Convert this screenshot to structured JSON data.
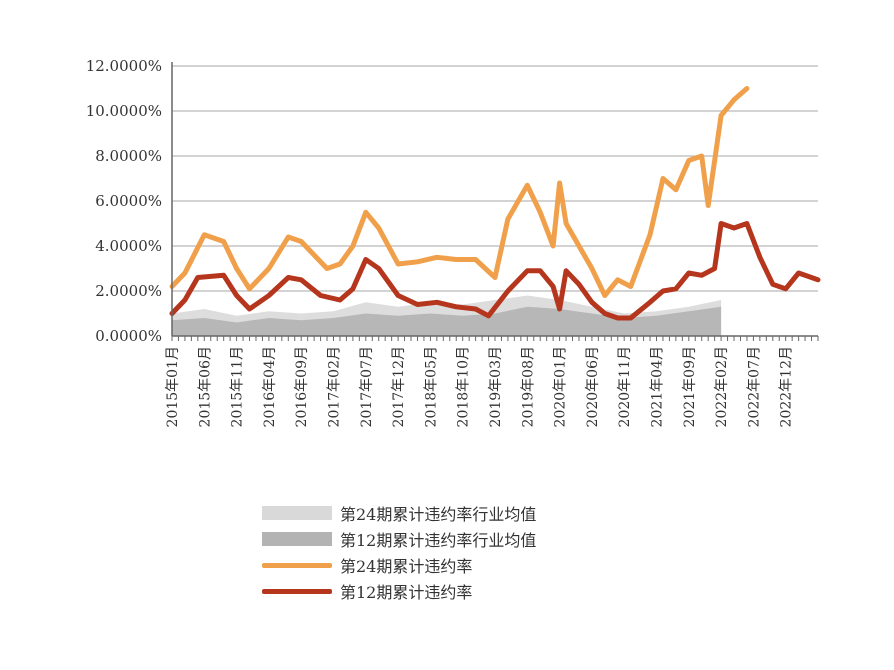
{
  "chart_data": {
    "type": "area",
    "x_tick_labels": [
      "2015年01月",
      "2015年06月",
      "2015年11月",
      "2016年04月",
      "2016年09月",
      "2017年02月",
      "2017年07月",
      "2017年12月",
      "2018年05月",
      "2018年10月",
      "2019年03月",
      "2019年08月",
      "2020年01月",
      "2020年06月",
      "2020年11月",
      "2021年04月",
      "2021年09月",
      "2022年02月",
      "2022年07月",
      "2022年12月"
    ],
    "y_tick_labels": [
      "0.0000%",
      "2.0000%",
      "4.0000%",
      "6.0000%",
      "8.0000%",
      "10.0000%",
      "12.0000%"
    ],
    "ylim": [
      0,
      12
    ],
    "x_start": "2015-01",
    "x_end": "2023-05",
    "grid": "horizontal",
    "legend_position": "bottom",
    "series": [
      {
        "name": "第24期累计违约率行业均值",
        "kind": "area",
        "color": "#d9d9d9",
        "values": [
          [
            "2015-01",
            1.0
          ],
          [
            "2015-06",
            1.2
          ],
          [
            "2015-11",
            0.9
          ],
          [
            "2016-04",
            1.1
          ],
          [
            "2016-09",
            1.0
          ],
          [
            "2017-02",
            1.1
          ],
          [
            "2017-07",
            1.5
          ],
          [
            "2017-12",
            1.3
          ],
          [
            "2018-05",
            1.5
          ],
          [
            "2018-10",
            1.4
          ],
          [
            "2019-03",
            1.6
          ],
          [
            "2019-08",
            1.8
          ],
          [
            "2020-01",
            1.6
          ],
          [
            "2020-06",
            1.3
          ],
          [
            "2020-11",
            1.0
          ],
          [
            "2021-04",
            1.1
          ],
          [
            "2021-09",
            1.3
          ],
          [
            "2022-02",
            1.6
          ]
        ]
      },
      {
        "name": "第12期累计违约率行业均值",
        "kind": "area",
        "color": "#b3b3b3",
        "values": [
          [
            "2015-01",
            0.7
          ],
          [
            "2015-06",
            0.8
          ],
          [
            "2015-11",
            0.6
          ],
          [
            "2016-04",
            0.8
          ],
          [
            "2016-09",
            0.7
          ],
          [
            "2017-02",
            0.8
          ],
          [
            "2017-07",
            1.0
          ],
          [
            "2017-12",
            0.9
          ],
          [
            "2018-05",
            1.0
          ],
          [
            "2018-10",
            0.9
          ],
          [
            "2019-03",
            1.0
          ],
          [
            "2019-08",
            1.3
          ],
          [
            "2020-01",
            1.2
          ],
          [
            "2020-06",
            1.0
          ],
          [
            "2020-11",
            0.8
          ],
          [
            "2021-04",
            0.9
          ],
          [
            "2021-09",
            1.1
          ],
          [
            "2022-02",
            1.3
          ]
        ]
      },
      {
        "name": "第24期累计违约率",
        "kind": "line",
        "color": "#f0a04b",
        "values": [
          [
            "2015-01",
            2.2
          ],
          [
            "2015-03",
            2.8
          ],
          [
            "2015-06",
            4.5
          ],
          [
            "2015-09",
            4.2
          ],
          [
            "2015-11",
            3.0
          ],
          [
            "2016-01",
            2.1
          ],
          [
            "2016-04",
            3.0
          ],
          [
            "2016-07",
            4.4
          ],
          [
            "2016-09",
            4.2
          ],
          [
            "2017-01",
            3.0
          ],
          [
            "2017-03",
            3.2
          ],
          [
            "2017-05",
            4.0
          ],
          [
            "2017-07",
            5.5
          ],
          [
            "2017-09",
            4.8
          ],
          [
            "2017-12",
            3.2
          ],
          [
            "2018-03",
            3.3
          ],
          [
            "2018-06",
            3.5
          ],
          [
            "2018-09",
            3.4
          ],
          [
            "2018-12",
            3.4
          ],
          [
            "2019-03",
            2.6
          ],
          [
            "2019-05",
            5.2
          ],
          [
            "2019-08",
            6.7
          ],
          [
            "2019-10",
            5.5
          ],
          [
            "2019-12",
            4.0
          ],
          [
            "2020-01",
            6.8
          ],
          [
            "2020-02",
            5.0
          ],
          [
            "2020-04",
            4.0
          ],
          [
            "2020-06",
            3.0
          ],
          [
            "2020-08",
            1.8
          ],
          [
            "2020-10",
            2.5
          ],
          [
            "2020-12",
            2.2
          ],
          [
            "2021-03",
            4.5
          ],
          [
            "2021-05",
            7.0
          ],
          [
            "2021-07",
            6.5
          ],
          [
            "2021-09",
            7.8
          ],
          [
            "2021-11",
            8.0
          ],
          [
            "2021-12",
            5.8
          ],
          [
            "2022-02",
            9.8
          ],
          [
            "2022-04",
            10.5
          ],
          [
            "2022-06",
            11.0
          ]
        ]
      },
      {
        "name": "第12期累计违约率",
        "kind": "line",
        "color": "#b5351d",
        "values": [
          [
            "2015-01",
            1.0
          ],
          [
            "2015-03",
            1.6
          ],
          [
            "2015-05",
            2.6
          ],
          [
            "2015-09",
            2.7
          ],
          [
            "2015-11",
            1.8
          ],
          [
            "2016-01",
            1.2
          ],
          [
            "2016-04",
            1.8
          ],
          [
            "2016-07",
            2.6
          ],
          [
            "2016-09",
            2.5
          ],
          [
            "2016-12",
            1.8
          ],
          [
            "2017-03",
            1.6
          ],
          [
            "2017-05",
            2.1
          ],
          [
            "2017-07",
            3.4
          ],
          [
            "2017-09",
            3.0
          ],
          [
            "2017-12",
            1.8
          ],
          [
            "2018-03",
            1.4
          ],
          [
            "2018-06",
            1.5
          ],
          [
            "2018-09",
            1.3
          ],
          [
            "2018-12",
            1.2
          ],
          [
            "2019-02",
            0.9
          ],
          [
            "2019-05",
            2.0
          ],
          [
            "2019-08",
            2.9
          ],
          [
            "2019-10",
            2.9
          ],
          [
            "2019-12",
            2.2
          ],
          [
            "2020-01",
            1.2
          ],
          [
            "2020-02",
            2.9
          ],
          [
            "2020-04",
            2.3
          ],
          [
            "2020-06",
            1.5
          ],
          [
            "2020-08",
            1.0
          ],
          [
            "2020-10",
            0.8
          ],
          [
            "2020-12",
            0.8
          ],
          [
            "2021-03",
            1.5
          ],
          [
            "2021-05",
            2.0
          ],
          [
            "2021-07",
            2.1
          ],
          [
            "2021-09",
            2.8
          ],
          [
            "2021-11",
            2.7
          ],
          [
            "2022-01",
            3.0
          ],
          [
            "2022-02",
            5.0
          ],
          [
            "2022-04",
            4.8
          ],
          [
            "2022-06",
            5.0
          ],
          [
            "2022-08",
            3.5
          ],
          [
            "2022-10",
            2.3
          ],
          [
            "2022-12",
            2.1
          ],
          [
            "2023-02",
            2.8
          ],
          [
            "2023-04",
            2.6
          ],
          [
            "2023-05",
            2.5
          ]
        ]
      }
    ]
  }
}
